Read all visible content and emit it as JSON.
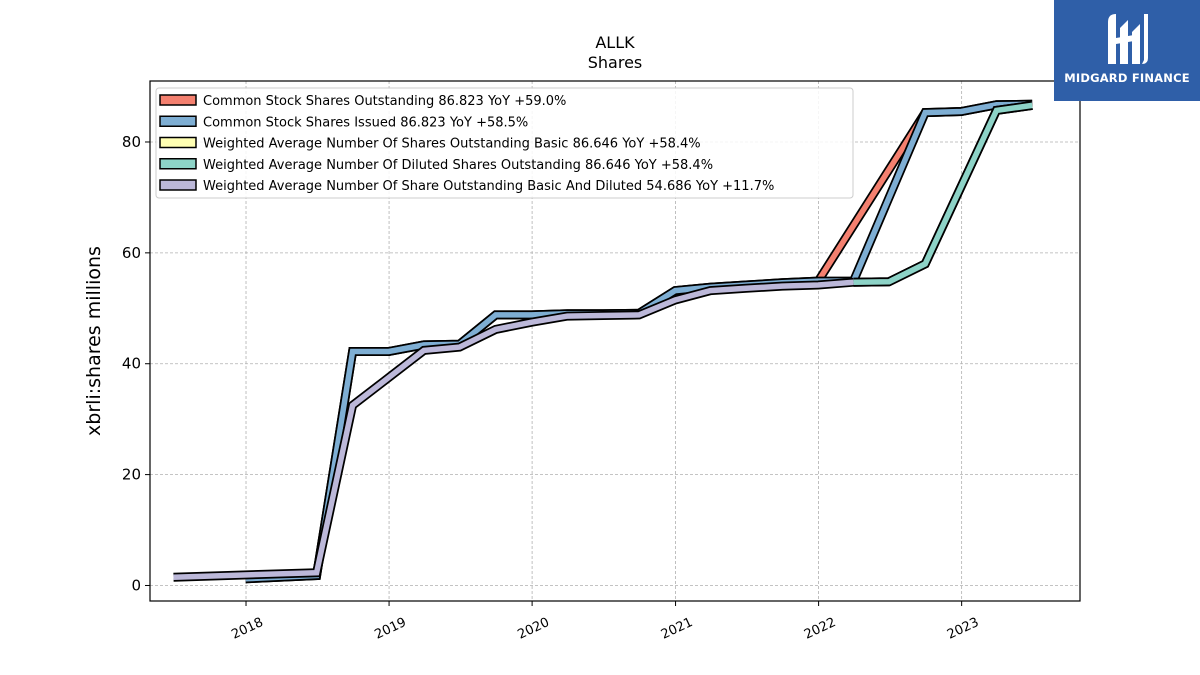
{
  "brand": {
    "name": "MIDGARD FINANCE",
    "bg": "#2f5fa8"
  },
  "chart_data": {
    "type": "line",
    "title": "ALLK",
    "subtitle": "Shares",
    "xlabel": "",
    "ylabel": "xbrli:shares millions",
    "xlim": [
      "2017-05-01",
      "2023-10-30"
    ],
    "ylim": [
      -2.8,
      91
    ],
    "yticks": [
      0,
      20,
      40,
      60,
      80
    ],
    "xticks": [
      "2018",
      "2019",
      "2020",
      "2021",
      "2022",
      "2023"
    ],
    "grid": true,
    "legend_position": "top-left",
    "series": [
      {
        "name": "Common Stock Shares Outstanding  86.823 YoY +59.0%",
        "color": "#f4806f",
        "x": [
          "2017-12-31",
          "2018-06-30",
          "2018-09-30",
          "2018-12-31",
          "2019-03-31",
          "2019-06-30",
          "2019-09-30",
          "2019-12-31",
          "2020-03-31",
          "2020-06-30",
          "2020-09-30",
          "2020-12-31",
          "2021-03-31",
          "2021-06-30",
          "2021-09-30",
          "2021-12-31",
          "2022-09-30",
          "2022-12-31",
          "2023-03-31",
          "2023-06-30"
        ],
        "y": [
          1.2,
          1.8,
          42.2,
          42.2,
          43.4,
          43.5,
          48.8,
          48.8,
          49.0,
          49.0,
          49.1,
          53.2,
          53.8,
          54.2,
          54.6,
          54.9,
          85.3,
          85.5,
          86.7,
          86.8
        ]
      },
      {
        "name": "Common Stock Shares Issued  86.823 YoY +58.5%",
        "color": "#7eaed3",
        "x": [
          "2017-12-31",
          "2018-06-30",
          "2018-09-30",
          "2018-12-31",
          "2019-03-31",
          "2019-06-30",
          "2019-09-30",
          "2019-12-31",
          "2020-03-31",
          "2020-06-30",
          "2020-09-30",
          "2020-12-31",
          "2021-03-31",
          "2021-06-30",
          "2021-09-30",
          "2021-12-31",
          "2022-03-31",
          "2022-09-30",
          "2022-12-31",
          "2023-03-31",
          "2023-06-30"
        ],
        "y": [
          1.2,
          1.8,
          42.2,
          42.2,
          43.4,
          43.5,
          48.8,
          48.8,
          49.0,
          49.0,
          49.1,
          53.2,
          53.8,
          54.2,
          54.6,
          54.9,
          54.9,
          85.3,
          85.5,
          86.7,
          86.8
        ]
      },
      {
        "name": "Weighted Average Number Of Shares Outstanding Basic  86.646 YoY +58.4%",
        "color": "#ffffb3",
        "x": [
          "2022-03-31",
          "2022-06-30",
          "2022-09-30",
          "2023-03-31",
          "2023-06-30"
        ],
        "y": [
          54.7,
          54.8,
          58.0,
          85.7,
          86.6
        ]
      },
      {
        "name": "Weighted Average Number Of Diluted Shares Outstanding  86.646 YoY +58.4%",
        "color": "#8dd3c7",
        "x": [
          "2022-03-31",
          "2022-06-30",
          "2022-09-30",
          "2023-03-31",
          "2023-06-30"
        ],
        "y": [
          54.7,
          54.8,
          58.0,
          85.7,
          86.6
        ]
      },
      {
        "name": "Weighted Average Number Of Share Outstanding Basic And Diluted  54.686 YoY +11.7%",
        "color": "#bcb8d9",
        "x": [
          "2017-06-30",
          "2018-06-30",
          "2018-09-30",
          "2018-12-31",
          "2019-03-31",
          "2019-06-30",
          "2019-09-30",
          "2019-12-31",
          "2020-03-31",
          "2020-06-30",
          "2020-09-30",
          "2020-12-31",
          "2021-03-31",
          "2021-06-30",
          "2021-09-30",
          "2021-12-31",
          "2022-03-31"
        ],
        "y": [
          1.5,
          2.3,
          32.5,
          37.5,
          42.4,
          43.0,
          46.2,
          47.5,
          48.6,
          48.7,
          48.8,
          51.5,
          53.2,
          53.6,
          54.0,
          54.2,
          54.7
        ]
      }
    ]
  }
}
